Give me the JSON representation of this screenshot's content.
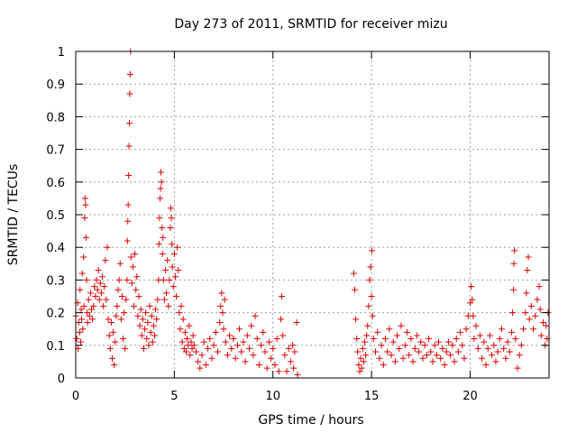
{
  "chart_data": {
    "type": "scatter",
    "title": "Day 273 of 2011, SRMTID for receiver mizu",
    "xlabel": "GPS time / hours",
    "ylabel": "SRMTID / TECUs",
    "xlim": [
      0,
      24
    ],
    "ylim": [
      0,
      1
    ],
    "x_ticks": [
      0,
      5,
      10,
      15,
      20
    ],
    "y_ticks": [
      0,
      0.1,
      0.2,
      0.3,
      0.4,
      0.5,
      0.6,
      0.7,
      0.8,
      0.9,
      1
    ],
    "grid": true,
    "marker": "+",
    "series_color": "#e00000",
    "series": [
      {
        "name": "SRMTID",
        "points": [
          [
            0.0,
            0.19
          ],
          [
            0.05,
            0.12
          ],
          [
            0.1,
            0.23
          ],
          [
            0.12,
            0.09
          ],
          [
            0.15,
            0.17
          ],
          [
            0.2,
            0.14
          ],
          [
            0.22,
            0.27
          ],
          [
            0.25,
            0.11
          ],
          [
            0.28,
            0.21
          ],
          [
            0.3,
            0.18
          ],
          [
            0.33,
            0.32
          ],
          [
            0.36,
            0.15
          ],
          [
            0.4,
            0.37
          ],
          [
            0.42,
            0.22
          ],
          [
            0.45,
            0.49
          ],
          [
            0.47,
            0.55
          ],
          [
            0.5,
            0.53
          ],
          [
            0.52,
            0.43
          ],
          [
            0.55,
            0.3
          ],
          [
            0.58,
            0.2
          ],
          [
            0.6,
            0.17
          ],
          [
            0.65,
            0.24
          ],
          [
            0.7,
            0.19
          ],
          [
            0.75,
            0.26
          ],
          [
            0.8,
            0.21
          ],
          [
            0.85,
            0.18
          ],
          [
            0.9,
            0.22
          ],
          [
            0.95,
            0.28
          ],
          [
            1.0,
            0.25
          ],
          [
            1.05,
            0.3
          ],
          [
            1.1,
            0.27
          ],
          [
            1.15,
            0.33
          ],
          [
            1.2,
            0.24
          ],
          [
            1.25,
            0.29
          ],
          [
            1.3,
            0.26
          ],
          [
            1.35,
            0.31
          ],
          [
            1.4,
            0.22
          ],
          [
            1.45,
            0.28
          ],
          [
            1.5,
            0.36
          ],
          [
            1.55,
            0.24
          ],
          [
            1.6,
            0.4
          ],
          [
            1.65,
            0.18
          ],
          [
            1.7,
            0.13
          ],
          [
            1.75,
            0.09
          ],
          [
            1.8,
            0.17
          ],
          [
            1.85,
            0.06
          ],
          [
            1.9,
            0.14
          ],
          [
            1.95,
            0.04
          ],
          [
            2.0,
            0.11
          ],
          [
            2.05,
            0.19
          ],
          [
            2.1,
            0.22
          ],
          [
            2.15,
            0.27
          ],
          [
            2.2,
            0.3
          ],
          [
            2.25,
            0.35
          ],
          [
            2.3,
            0.18
          ],
          [
            2.35,
            0.25
          ],
          [
            2.4,
            0.12
          ],
          [
            2.45,
            0.2
          ],
          [
            2.5,
            0.09
          ],
          [
            2.55,
            0.24
          ],
          [
            2.6,
            0.3
          ],
          [
            2.62,
            0.42
          ],
          [
            2.64,
            0.48
          ],
          [
            2.66,
            0.53
          ],
          [
            2.68,
            0.62
          ],
          [
            2.7,
            0.71
          ],
          [
            2.72,
            0.78
          ],
          [
            2.74,
            0.87
          ],
          [
            2.76,
            0.93
          ],
          [
            2.78,
            1.0
          ],
          [
            2.8,
            0.37
          ],
          [
            2.85,
            0.29
          ],
          [
            2.9,
            0.34
          ],
          [
            2.95,
            0.22
          ],
          [
            3.0,
            0.38
          ],
          [
            3.05,
            0.27
          ],
          [
            3.1,
            0.31
          ],
          [
            3.15,
            0.19
          ],
          [
            3.2,
            0.25
          ],
          [
            3.25,
            0.16
          ],
          [
            3.3,
            0.21
          ],
          [
            3.35,
            0.13
          ],
          [
            3.4,
            0.18
          ],
          [
            3.45,
            0.09
          ],
          [
            3.5,
            0.15
          ],
          [
            3.55,
            0.2
          ],
          [
            3.6,
            0.12
          ],
          [
            3.65,
            0.17
          ],
          [
            3.7,
            0.1
          ],
          [
            3.75,
            0.22
          ],
          [
            3.8,
            0.14
          ],
          [
            3.85,
            0.19
          ],
          [
            3.9,
            0.11
          ],
          [
            3.95,
            0.16
          ],
          [
            4.0,
            0.13
          ],
          [
            4.05,
            0.21
          ],
          [
            4.1,
            0.18
          ],
          [
            4.15,
            0.24
          ],
          [
            4.2,
            0.3
          ],
          [
            4.22,
            0.41
          ],
          [
            4.25,
            0.49
          ],
          [
            4.28,
            0.55
          ],
          [
            4.3,
            0.58
          ],
          [
            4.32,
            0.63
          ],
          [
            4.35,
            0.6
          ],
          [
            4.38,
            0.46
          ],
          [
            4.4,
            0.38
          ],
          [
            4.42,
            0.43
          ],
          [
            4.45,
            0.3
          ],
          [
            4.5,
            0.24
          ],
          [
            4.55,
            0.33
          ],
          [
            4.6,
            0.26
          ],
          [
            4.65,
            0.36
          ],
          [
            4.7,
            0.22
          ],
          [
            4.75,
            0.3
          ],
          [
            4.8,
            0.46
          ],
          [
            4.82,
            0.52
          ],
          [
            4.85,
            0.49
          ],
          [
            4.88,
            0.41
          ],
          [
            4.9,
            0.34
          ],
          [
            4.95,
            0.28
          ],
          [
            5.0,
            0.38
          ],
          [
            5.05,
            0.31
          ],
          [
            5.1,
            0.25
          ],
          [
            5.15,
            0.4
          ],
          [
            5.2,
            0.33
          ],
          [
            5.25,
            0.2
          ],
          [
            5.3,
            0.15
          ],
          [
            5.35,
            0.22
          ],
          [
            5.4,
            0.11
          ],
          [
            5.45,
            0.18
          ],
          [
            5.5,
            0.09
          ],
          [
            5.55,
            0.14
          ],
          [
            5.6,
            0.08
          ],
          [
            5.65,
            0.12
          ],
          [
            5.7,
            0.1
          ],
          [
            5.75,
            0.16
          ],
          [
            5.8,
            0.07
          ],
          [
            5.85,
            0.11
          ],
          [
            5.9,
            0.09
          ],
          [
            5.95,
            0.13
          ],
          [
            6.0,
            0.1
          ],
          [
            6.1,
            0.08
          ],
          [
            6.2,
            0.05
          ],
          [
            6.3,
            0.03
          ],
          [
            6.4,
            0.07
          ],
          [
            6.5,
            0.11
          ],
          [
            6.6,
            0.04
          ],
          [
            6.7,
            0.09
          ],
          [
            6.8,
            0.12
          ],
          [
            6.9,
            0.06
          ],
          [
            7.0,
            0.1
          ],
          [
            7.1,
            0.14
          ],
          [
            7.2,
            0.08
          ],
          [
            7.3,
            0.17
          ],
          [
            7.35,
            0.22
          ],
          [
            7.4,
            0.26
          ],
          [
            7.45,
            0.2
          ],
          [
            7.5,
            0.15
          ],
          [
            7.55,
            0.24
          ],
          [
            7.6,
            0.11
          ],
          [
            7.7,
            0.07
          ],
          [
            7.8,
            0.13
          ],
          [
            7.9,
            0.09
          ],
          [
            8.0,
            0.12
          ],
          [
            8.1,
            0.06
          ],
          [
            8.2,
            0.1
          ],
          [
            8.3,
            0.15
          ],
          [
            8.4,
            0.08
          ],
          [
            8.5,
            0.11
          ],
          [
            8.6,
            0.05
          ],
          [
            8.7,
            0.13
          ],
          [
            8.8,
            0.09
          ],
          [
            8.9,
            0.16
          ],
          [
            9.0,
            0.07
          ],
          [
            9.1,
            0.19
          ],
          [
            9.2,
            0.12
          ],
          [
            9.3,
            0.04
          ],
          [
            9.4,
            0.1
          ],
          [
            9.5,
            0.14
          ],
          [
            9.6,
            0.08
          ],
          [
            9.7,
            0.03
          ],
          [
            9.8,
            0.11
          ],
          [
            9.9,
            0.06
          ],
          [
            10.0,
            0.09
          ],
          [
            10.1,
            0.04
          ],
          [
            10.2,
            0.12
          ],
          [
            10.3,
            0.02
          ],
          [
            10.4,
            0.18
          ],
          [
            10.45,
            0.25
          ],
          [
            10.5,
            0.13
          ],
          [
            10.6,
            0.07
          ],
          [
            10.7,
            0.02
          ],
          [
            10.8,
            0.09
          ],
          [
            10.9,
            0.05
          ],
          [
            11.0,
            0.1
          ],
          [
            11.05,
            0.03
          ],
          [
            11.1,
            0.08
          ],
          [
            11.2,
            0.17
          ],
          [
            11.25,
            0.01
          ],
          [
            14.1,
            0.32
          ],
          [
            14.15,
            0.27
          ],
          [
            14.2,
            0.18
          ],
          [
            14.25,
            0.12
          ],
          [
            14.3,
            0.08
          ],
          [
            14.35,
            0.04
          ],
          [
            14.4,
            0.02
          ],
          [
            14.45,
            0.06
          ],
          [
            14.5,
            0.03
          ],
          [
            14.55,
            0.09
          ],
          [
            14.6,
            0.05
          ],
          [
            14.65,
            0.11
          ],
          [
            14.7,
            0.07
          ],
          [
            14.75,
            0.13
          ],
          [
            14.8,
            0.16
          ],
          [
            14.85,
            0.22
          ],
          [
            14.9,
            0.3
          ],
          [
            14.95,
            0.34
          ],
          [
            15.0,
            0.25
          ],
          [
            15.02,
            0.39
          ],
          [
            15.05,
            0.19
          ],
          [
            15.1,
            0.12
          ],
          [
            15.2,
            0.08
          ],
          [
            15.3,
            0.14
          ],
          [
            15.4,
            0.06
          ],
          [
            15.5,
            0.1
          ],
          [
            15.6,
            0.04
          ],
          [
            15.7,
            0.12
          ],
          [
            15.8,
            0.08
          ],
          [
            15.9,
            0.15
          ],
          [
            16.0,
            0.07
          ],
          [
            16.1,
            0.11
          ],
          [
            16.2,
            0.05
          ],
          [
            16.3,
            0.13
          ],
          [
            16.4,
            0.09
          ],
          [
            16.5,
            0.16
          ],
          [
            16.6,
            0.06
          ],
          [
            16.7,
            0.1
          ],
          [
            16.8,
            0.14
          ],
          [
            16.9,
            0.07
          ],
          [
            17.0,
            0.12
          ],
          [
            17.1,
            0.05
          ],
          [
            17.2,
            0.09
          ],
          [
            17.3,
            0.13
          ],
          [
            17.4,
            0.08
          ],
          [
            17.5,
            0.11
          ],
          [
            17.6,
            0.06
          ],
          [
            17.7,
            0.1
          ],
          [
            17.8,
            0.07
          ],
          [
            17.9,
            0.12
          ],
          [
            18.0,
            0.08
          ],
          [
            18.1,
            0.05
          ],
          [
            18.2,
            0.1
          ],
          [
            18.3,
            0.07
          ],
          [
            18.4,
            0.11
          ],
          [
            18.5,
            0.06
          ],
          [
            18.6,
            0.09
          ],
          [
            18.7,
            0.04
          ],
          [
            18.8,
            0.08
          ],
          [
            18.9,
            0.11
          ],
          [
            19.0,
            0.07
          ],
          [
            19.1,
            0.1
          ],
          [
            19.2,
            0.05
          ],
          [
            19.3,
            0.12
          ],
          [
            19.4,
            0.08
          ],
          [
            19.5,
            0.14
          ],
          [
            19.6,
            0.1
          ],
          [
            19.7,
            0.06
          ],
          [
            19.8,
            0.15
          ],
          [
            19.9,
            0.19
          ],
          [
            20.0,
            0.23
          ],
          [
            20.05,
            0.28
          ],
          [
            20.1,
            0.24
          ],
          [
            20.15,
            0.19
          ],
          [
            20.2,
            0.12
          ],
          [
            20.3,
            0.16
          ],
          [
            20.4,
            0.09
          ],
          [
            20.5,
            0.13
          ],
          [
            20.6,
            0.06
          ],
          [
            20.7,
            0.11
          ],
          [
            20.8,
            0.04
          ],
          [
            20.9,
            0.09
          ],
          [
            21.0,
            0.13
          ],
          [
            21.1,
            0.07
          ],
          [
            21.2,
            0.1
          ],
          [
            21.3,
            0.05
          ],
          [
            21.4,
            0.08
          ],
          [
            21.5,
            0.12
          ],
          [
            21.6,
            0.15
          ],
          [
            21.7,
            0.09
          ],
          [
            21.8,
            0.06
          ],
          [
            21.9,
            0.11
          ],
          [
            22.0,
            0.08
          ],
          [
            22.1,
            0.14
          ],
          [
            22.15,
            0.2
          ],
          [
            22.2,
            0.27
          ],
          [
            22.22,
            0.35
          ],
          [
            22.25,
            0.39
          ],
          [
            22.3,
            0.12
          ],
          [
            22.4,
            0.03
          ],
          [
            22.5,
            0.07
          ],
          [
            22.6,
            0.1
          ],
          [
            22.7,
            0.15
          ],
          [
            22.8,
            0.2
          ],
          [
            22.85,
            0.26
          ],
          [
            22.9,
            0.33
          ],
          [
            22.95,
            0.37
          ],
          [
            23.0,
            0.18
          ],
          [
            23.1,
            0.22
          ],
          [
            23.2,
            0.15
          ],
          [
            23.3,
            0.19
          ],
          [
            23.4,
            0.24
          ],
          [
            23.5,
            0.28
          ],
          [
            23.55,
            0.21
          ],
          [
            23.6,
            0.13
          ],
          [
            23.7,
            0.17
          ],
          [
            23.8,
            0.1
          ],
          [
            23.85,
            0.16
          ],
          [
            23.9,
            0.12
          ],
          [
            23.95,
            0.2
          ]
        ]
      }
    ]
  }
}
